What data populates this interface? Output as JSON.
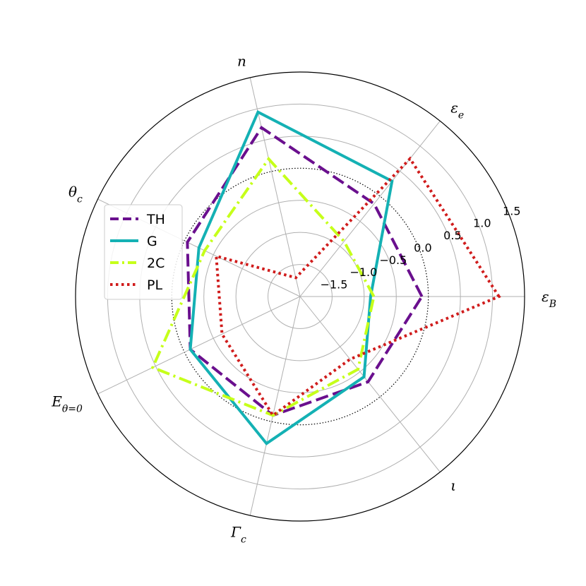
{
  "chart_data": {
    "type": "radar",
    "title": "",
    "axes": [
      "ε_B",
      "ε_e",
      "n",
      "θ_c",
      "E_θ=0",
      "Γ_c",
      "ι"
    ],
    "r_ticks": [
      -1.5,
      -1.0,
      -0.5,
      0.0,
      0.5,
      1.0,
      1.5
    ],
    "r_tick_labels": [
      "−1.5",
      "−1.0",
      "−0.5",
      "0.0",
      "0.5",
      "1.0",
      "1.5"
    ],
    "r_range": [
      -2.0,
      1.5
    ],
    "reference_ring": 0.0,
    "grid": true,
    "legend_position": "left",
    "series": [
      {
        "name": "TH",
        "color": "#6a0f8e",
        "style": "dashed",
        "values": [
          -0.1,
          -0.15,
          0.7,
          -0.05,
          -0.1,
          -0.1,
          -0.3
        ]
      },
      {
        "name": "G",
        "color": "#14b1b4",
        "style": "solid",
        "values": [
          -0.9,
          0.3,
          0.95,
          -0.25,
          -0.1,
          0.35,
          -0.4
        ]
      },
      {
        "name": "2C",
        "color": "#c6ff1a",
        "style": "dashdot",
        "values": [
          -0.85,
          -0.9,
          0.2,
          -0.35,
          0.55,
          -0.1,
          -0.55
        ]
      },
      {
        "name": "PL",
        "color": "#d01c1c",
        "style": "dotted",
        "values": [
          1.1,
          0.75,
          -1.7,
          -0.55,
          -0.65,
          -0.1,
          -0.75
        ]
      }
    ]
  }
}
